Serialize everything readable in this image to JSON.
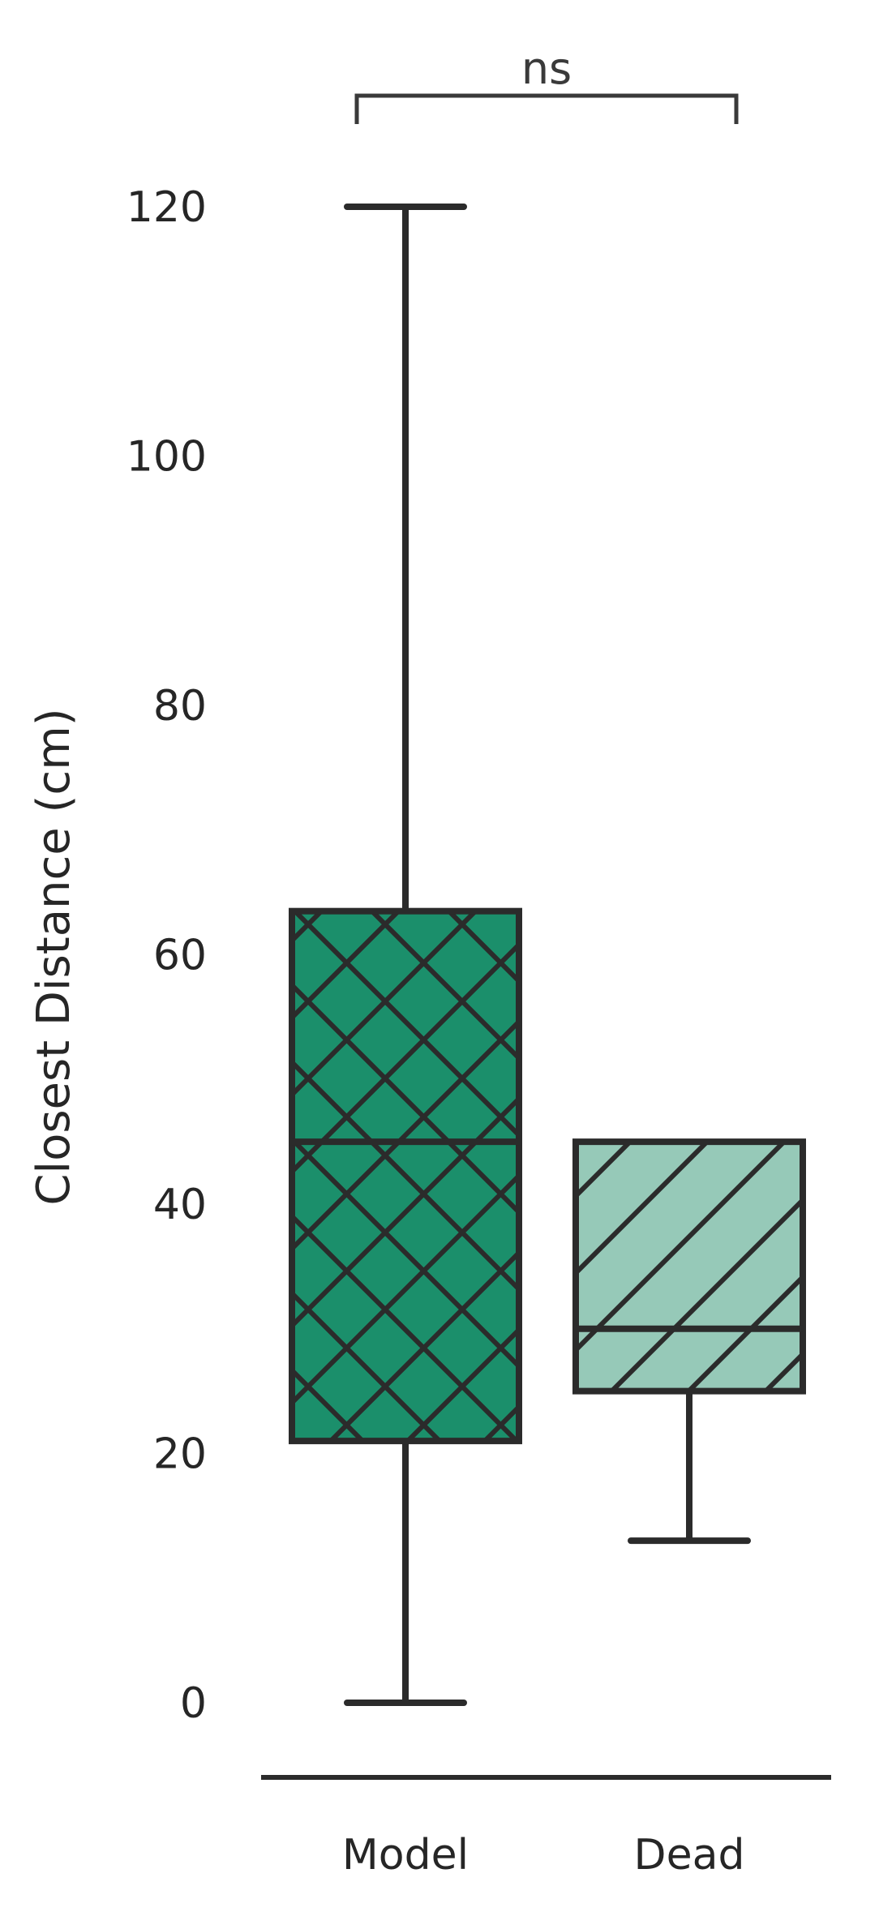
{
  "chart_data": {
    "type": "box",
    "ylabel": "Closest Distance (cm)",
    "xlabel": "",
    "ylim": [
      -9,
      133
    ],
    "yticks": [
      0,
      20,
      40,
      60,
      80,
      100,
      120
    ],
    "categories": [
      "Model",
      "Dead"
    ],
    "boxes": [
      {
        "category": "Model",
        "whisker_low": 0,
        "q1": 21,
        "median": 45,
        "q3": 63.5,
        "whisker_high": 120,
        "color": "#1b8f6b",
        "hatch": "crosshatch-diagonal"
      },
      {
        "category": "Dead",
        "whisker_low": 13,
        "q1": 25,
        "median": 30,
        "q3": 45,
        "whisker_high": 45,
        "color": "#96c9b8",
        "hatch": "forward-diagonal"
      }
    ],
    "significance": [
      {
        "from": "Model",
        "to": "Dead",
        "label": "ns"
      }
    ],
    "grid": false,
    "legend": "none"
  }
}
